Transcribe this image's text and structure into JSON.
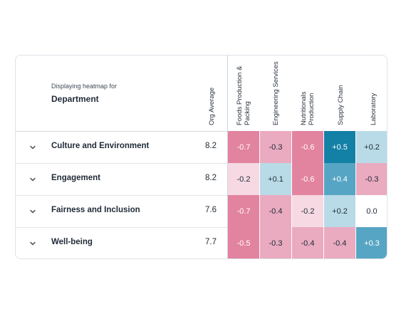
{
  "header": {
    "display_label": "Displaying heatmap for",
    "display_value": "Department",
    "org_average_label": "Org Average",
    "columns": [
      {
        "line1": "Foods Production &",
        "line2": "Packing"
      },
      {
        "line1": "Engineering Services",
        "line2": ""
      },
      {
        "line1": "Nutritionals",
        "line2": "Production"
      },
      {
        "line1": "Supply Chain",
        "line2": ""
      },
      {
        "line1": "Laboratory",
        "line2": ""
      }
    ]
  },
  "rows": [
    {
      "label": "Culture and Environment",
      "avg": "8.2",
      "cells": [
        {
          "v": "-0.7",
          "bg": "#e2839f",
          "fg": "#ffffff"
        },
        {
          "v": "-0.3",
          "bg": "#eaaac0",
          "fg": "#1f2a37"
        },
        {
          "v": "-0.6",
          "bg": "#e2839f",
          "fg": "#ffffff"
        },
        {
          "v": "+0.5",
          "bg": "#1380a6",
          "fg": "#ffffff"
        },
        {
          "v": "+0.2",
          "bg": "#b9dbe8",
          "fg": "#1f2a37"
        }
      ]
    },
    {
      "label": "Engagement",
      "avg": "8.2",
      "cells": [
        {
          "v": "-0.2",
          "bg": "#f6d9e2",
          "fg": "#1f2a37"
        },
        {
          "v": "+0.1",
          "bg": "#b9dbe8",
          "fg": "#1f2a37"
        },
        {
          "v": "-0.6",
          "bg": "#e2839f",
          "fg": "#ffffff"
        },
        {
          "v": "+0.4",
          "bg": "#57a5c4",
          "fg": "#ffffff"
        },
        {
          "v": "-0.3",
          "bg": "#eaaac0",
          "fg": "#1f2a37"
        }
      ]
    },
    {
      "label": "Fairness and Inclusion",
      "avg": "7.6",
      "cells": [
        {
          "v": "-0.7",
          "bg": "#e2839f",
          "fg": "#ffffff"
        },
        {
          "v": "-0.4",
          "bg": "#eaaac0",
          "fg": "#1f2a37"
        },
        {
          "v": "-0.2",
          "bg": "#f6d9e2",
          "fg": "#1f2a37"
        },
        {
          "v": "+0.2",
          "bg": "#b9dbe8",
          "fg": "#1f2a37"
        },
        {
          "v": "0.0",
          "bg": "#ffffff",
          "fg": "#1f2a37"
        }
      ]
    },
    {
      "label": "Well-being",
      "avg": "7.7",
      "cells": [
        {
          "v": "-0.5",
          "bg": "#e2839f",
          "fg": "#ffffff"
        },
        {
          "v": "-0.3",
          "bg": "#eaaac0",
          "fg": "#1f2a37"
        },
        {
          "v": "-0.4",
          "bg": "#eaaac0",
          "fg": "#1f2a37"
        },
        {
          "v": "-0.4",
          "bg": "#eaaac0",
          "fg": "#1f2a37"
        },
        {
          "v": "+0.3",
          "bg": "#57a5c4",
          "fg": "#ffffff"
        }
      ]
    }
  ]
}
